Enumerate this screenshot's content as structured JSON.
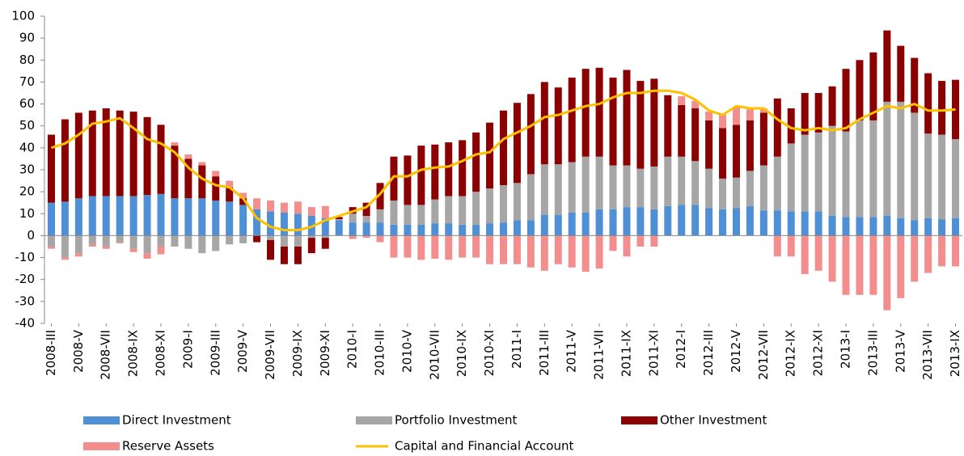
{
  "chart_data": {
    "type": "bar",
    "stacked": true,
    "categories": [
      "2008-III",
      null,
      "2008-V",
      null,
      "2008-VII",
      null,
      "2008-IX",
      null,
      "2008-XI",
      null,
      "2009-I",
      null,
      "2009-III",
      null,
      "2009-V",
      null,
      "2009-VII",
      null,
      "2009-IX",
      null,
      "2009-XI",
      null,
      "2010-I",
      null,
      "2010-III",
      null,
      "2010-V",
      null,
      "2010-VII",
      null,
      "2010-IX",
      null,
      "2010-XI",
      null,
      "2011-I",
      null,
      "2011-III",
      null,
      "2011-V",
      null,
      "2011-VII",
      null,
      "2011-IX",
      null,
      "2011-XI",
      null,
      "2012-I",
      null,
      "2012-III",
      null,
      "2012-V",
      null,
      "2012-VII",
      null,
      "2012-IX",
      null,
      "2012-XI",
      null,
      "2013-I",
      null,
      "2013-III",
      null,
      "2013-V",
      null,
      "2013-VII",
      null,
      "2013-IX"
    ],
    "series": [
      {
        "name": "Direct Investment",
        "color": "#4f8fd6",
        "values": [
          15,
          15.5,
          17,
          18,
          18,
          18,
          18,
          18.5,
          19,
          17,
          17,
          17,
          16,
          15.5,
          14,
          12,
          11,
          10.5,
          10,
          9,
          8,
          7,
          6,
          6,
          6,
          5,
          5,
          5,
          5.5,
          5.5,
          5,
          5,
          5.5,
          6,
          7,
          7,
          9.5,
          9.5,
          10.5,
          10.5,
          12,
          12,
          13,
          13,
          12,
          13.5,
          14,
          14,
          12.5,
          12,
          12.5,
          13.5,
          11.5,
          11.5,
          11,
          11,
          11,
          9,
          8.5,
          8.5,
          8.5,
          9,
          8,
          7,
          8,
          7.5,
          8
        ]
      },
      {
        "name": "Portfolio Investment",
        "color": "#a6a6a6",
        "values": [
          -5,
          -10,
          -8,
          -4,
          -5,
          -3,
          -6,
          -8,
          -5,
          -5,
          -6,
          -8,
          -7,
          -4,
          -3.5,
          0,
          -2,
          -5,
          -5,
          -1,
          -1,
          0.5,
          4,
          3,
          6,
          11,
          9,
          9,
          11,
          12.5,
          13,
          15,
          16,
          17,
          17,
          21,
          23,
          23,
          23,
          25.5,
          24,
          20,
          19,
          17.5,
          19.5,
          22.5,
          22,
          20,
          18,
          14,
          14,
          16,
          20.5,
          24.5,
          31,
          35,
          36,
          41,
          39,
          44,
          44,
          52,
          53,
          49,
          38.5,
          38.5,
          36
        ]
      },
      {
        "name": "Other Investment",
        "color": "#8b0000",
        "values": [
          31,
          37.5,
          39,
          39,
          40,
          39,
          38.5,
          35.5,
          31.5,
          24,
          18,
          15,
          11,
          6.5,
          3,
          -3,
          -9,
          -8,
          -8,
          -7,
          -5,
          1,
          3,
          6,
          12,
          20,
          22.5,
          27,
          25,
          24.5,
          25.5,
          27,
          30,
          34,
          36.5,
          36.5,
          37.5,
          35,
          38.5,
          40,
          40.5,
          40,
          43.5,
          40,
          40,
          28,
          23.5,
          24,
          22,
          23,
          24,
          23,
          24,
          26.5,
          16,
          19,
          18,
          18,
          28.5,
          27.5,
          31,
          32.5,
          25.5,
          25,
          27.5,
          24.5,
          27
        ]
      },
      {
        "name": "Reserve Assets",
        "color": "#f28e8e",
        "values": [
          -1,
          -1,
          -1.5,
          -1,
          -1,
          -0.5,
          -1.5,
          -2.5,
          -3.5,
          1.5,
          2,
          1.5,
          2.5,
          3,
          2.5,
          5,
          5,
          4.5,
          5.5,
          4,
          5.5,
          0,
          -1.5,
          -1,
          -3,
          -10,
          -10,
          -11,
          -10.5,
          -11,
          -10,
          -10,
          -13,
          -13,
          -13,
          -14.5,
          -16,
          -13,
          -14.5,
          -16.5,
          -15,
          -7,
          -9.5,
          -5,
          -5,
          0,
          4,
          3.5,
          4,
          6,
          8,
          5,
          2,
          -9.5,
          -9.5,
          -17.5,
          -16,
          -21,
          -27,
          -27,
          -27,
          -34,
          -28.5,
          -21,
          -17,
          -14,
          -14
        ]
      },
      {
        "name": "Capital and Financial Account",
        "color": "#ffc000",
        "type": "line",
        "values": [
          40,
          42,
          46,
          51,
          52,
          53.5,
          49,
          44,
          42,
          38,
          31,
          26,
          23,
          22,
          17,
          8,
          4,
          2.5,
          2.5,
          4,
          7,
          9,
          11,
          13,
          19,
          27,
          27,
          30,
          31,
          31.5,
          34,
          37,
          38,
          44,
          47,
          50,
          54,
          55,
          57,
          59,
          60,
          63,
          65,
          65,
          66,
          66,
          65,
          62,
          57,
          55,
          59,
          58,
          58,
          53,
          49,
          48,
          49,
          48,
          49,
          53,
          56,
          59,
          58,
          60,
          57,
          57,
          57.5
        ]
      }
    ],
    "ylim": [
      -40,
      100
    ],
    "yticks": [
      -40,
      -30,
      -20,
      -10,
      0,
      10,
      20,
      30,
      40,
      50,
      60,
      70,
      80,
      90,
      100
    ]
  }
}
